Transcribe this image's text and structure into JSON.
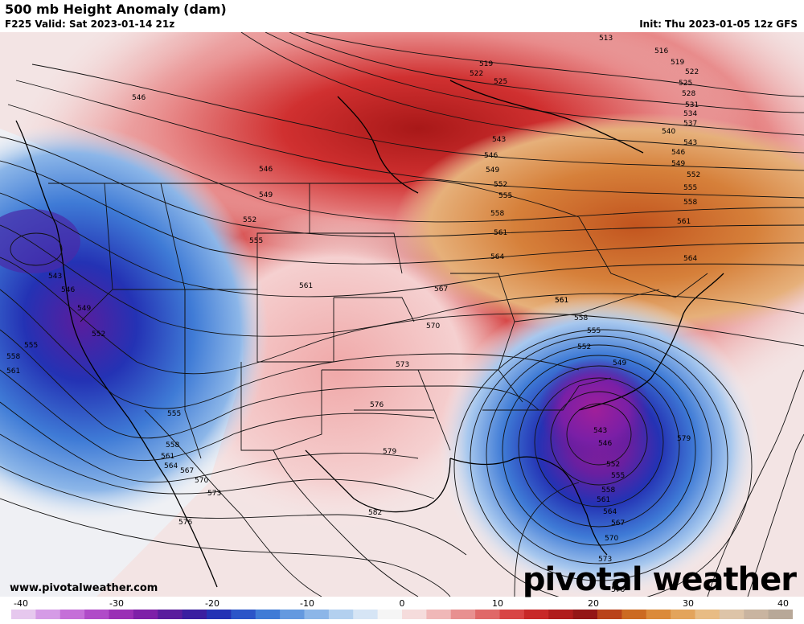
{
  "header": {
    "title": "500 mb Height Anomaly (dam)",
    "valid": "F225 Valid: Sat 2023-01-14 21z",
    "init": "Init: Thu 2023-01-05 12z GFS"
  },
  "footer": {
    "site": "www.pivotalweather.com",
    "logo": "pivotal weather"
  },
  "colorbar": {
    "ticks": [
      "-40",
      "-30",
      "-20",
      "-10",
      "0",
      "10",
      "20",
      "30",
      "40"
    ],
    "colors": [
      "#e6c8ee",
      "#d59be6",
      "#c56fd8",
      "#b04bc8",
      "#9a2fb5",
      "#7e20a8",
      "#5a1d9d",
      "#3a1ea0",
      "#2432b4",
      "#2b55c8",
      "#3f7bd6",
      "#6499df",
      "#8cb6e8",
      "#b3d0ef",
      "#d6e5f5",
      "#f5f5f5",
      "#f5dcdc",
      "#f0b8b8",
      "#e89090",
      "#e06868",
      "#d84444",
      "#c82828",
      "#b01c1c",
      "#941616",
      "#b9421a",
      "#cc6a22",
      "#db8a3a",
      "#e3a45c",
      "#e8bc84",
      "#ddc4a8",
      "#c9b4a0",
      "#b8a898"
    ]
  },
  "contours": {
    "heights": [
      "513",
      "516",
      "519",
      "522",
      "525",
      "528",
      "531",
      "534",
      "537",
      "540",
      "543",
      "546",
      "549",
      "552",
      "555",
      "558",
      "561",
      "564",
      "567",
      "570",
      "573",
      "576",
      "579",
      "582"
    ]
  },
  "map_labels": [
    {
      "text": "513"
    },
    {
      "text": "516"
    },
    {
      "text": "519"
    },
    {
      "text": "522"
    },
    {
      "text": "525"
    },
    {
      "text": "528"
    },
    {
      "text": "531"
    },
    {
      "text": "534"
    },
    {
      "text": "537"
    },
    {
      "text": "540"
    },
    {
      "text": "543"
    },
    {
      "text": "546"
    },
    {
      "text": "549"
    },
    {
      "text": "552"
    },
    {
      "text": "555"
    },
    {
      "text": "558"
    },
    {
      "text": "561"
    },
    {
      "text": "564"
    },
    {
      "text": "519"
    },
    {
      "text": "522"
    },
    {
      "text": "525"
    },
    {
      "text": "546"
    },
    {
      "text": "546"
    },
    {
      "text": "549"
    },
    {
      "text": "552"
    },
    {
      "text": "555"
    },
    {
      "text": "561"
    },
    {
      "text": "543"
    },
    {
      "text": "546"
    },
    {
      "text": "549"
    },
    {
      "text": "552"
    },
    {
      "text": "555"
    },
    {
      "text": "558"
    },
    {
      "text": "561"
    },
    {
      "text": "561"
    },
    {
      "text": "564"
    },
    {
      "text": "567"
    },
    {
      "text": "570"
    },
    {
      "text": "573"
    },
    {
      "text": "576"
    },
    {
      "text": "579"
    },
    {
      "text": "582"
    },
    {
      "text": "543"
    },
    {
      "text": "546"
    },
    {
      "text": "549"
    },
    {
      "text": "552"
    },
    {
      "text": "555"
    },
    {
      "text": "558"
    },
    {
      "text": "561"
    },
    {
      "text": "555"
    },
    {
      "text": "558"
    },
    {
      "text": "561"
    },
    {
      "text": "564"
    },
    {
      "text": "567"
    },
    {
      "text": "570"
    },
    {
      "text": "573"
    },
    {
      "text": "576"
    },
    {
      "text": "549"
    },
    {
      "text": "552"
    },
    {
      "text": "555"
    },
    {
      "text": "558"
    },
    {
      "text": "561"
    },
    {
      "text": "543"
    },
    {
      "text": "546"
    },
    {
      "text": "552"
    },
    {
      "text": "555"
    },
    {
      "text": "558"
    },
    {
      "text": "561"
    },
    {
      "text": "564"
    },
    {
      "text": "567"
    },
    {
      "text": "570"
    },
    {
      "text": "573"
    },
    {
      "text": "576"
    },
    {
      "text": "579"
    }
  ]
}
